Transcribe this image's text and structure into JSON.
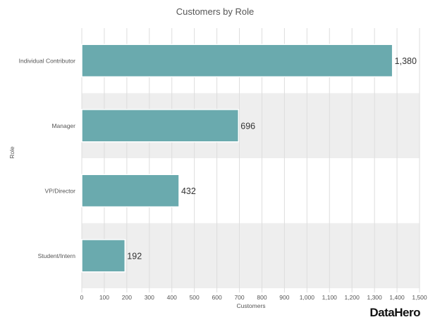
{
  "chart_data": {
    "type": "bar",
    "orientation": "horizontal",
    "title": "Customers by Role",
    "xlabel": "Customers",
    "ylabel": "Role",
    "categories": [
      "Individual Contributor",
      "Manager",
      "VP/Director",
      "Student/Intern"
    ],
    "values": [
      1380,
      696,
      432,
      192
    ],
    "value_labels": [
      "1,380",
      "696",
      "432",
      "192"
    ],
    "xlim": [
      0,
      1500
    ],
    "xticks": [
      0,
      100,
      200,
      300,
      400,
      500,
      600,
      700,
      800,
      900,
      1000,
      1100,
      1200,
      1300,
      1400,
      1500
    ],
    "xtick_labels": [
      "0",
      "100",
      "200",
      "300",
      "400",
      "500",
      "600",
      "700",
      "800",
      "900",
      "1,000",
      "1,100",
      "1,200",
      "1,300",
      "1,400",
      "1,500"
    ],
    "grid": true,
    "band_shading": "alternating",
    "bar_color": "#6aaaae",
    "bar_edge_color": "#ffffff",
    "band_color": "#eeeeee",
    "grid_color": "#dddddd"
  },
  "branding": {
    "text": "DataHero"
  }
}
